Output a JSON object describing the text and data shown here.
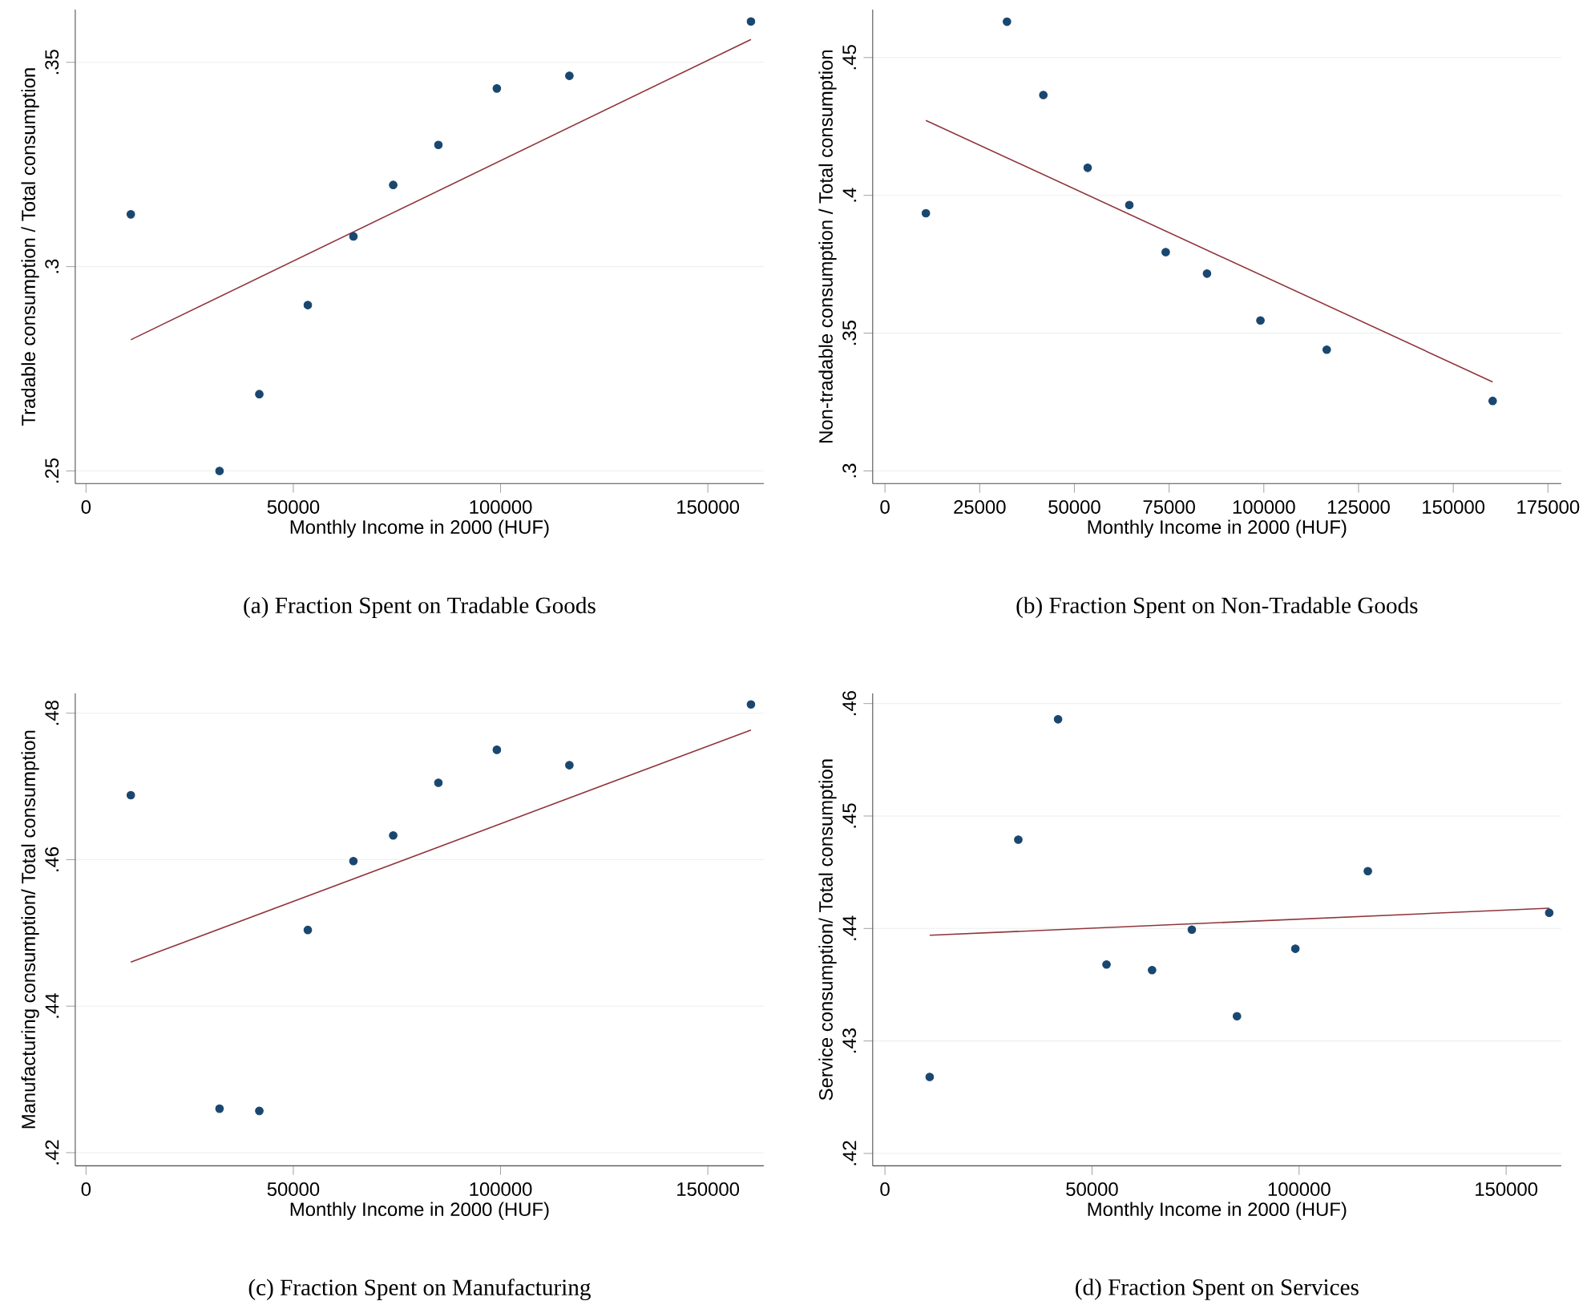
{
  "chart_data": [
    {
      "type": "scatter",
      "title": "(a)  Fraction Spent on Tradable Goods",
      "xlabel": "Monthly Income in 2000 (HUF)",
      "ylabel": "Tradable consumption / Total consumption",
      "grid": "y",
      "xlim": [
        -2600,
        163500
      ],
      "ylim": [
        0.2469,
        0.3629
      ],
      "xticks": [
        0,
        50000,
        100000,
        150000
      ],
      "yticks": [
        {
          "value": 0.25,
          "label": ".25"
        },
        {
          "value": 0.3,
          "label": ".3"
        },
        {
          "value": 0.35,
          "label": ".35"
        }
      ],
      "series": [
        {
          "color": "#1a476f",
          "marker": "circle",
          "x": [
            10800,
            32200,
            41800,
            53500,
            64500,
            74100,
            85000,
            99100,
            116600,
            160400
          ],
          "values": [
            0.3128,
            0.25,
            0.2688,
            0.2906,
            0.3074,
            0.32,
            0.3298,
            0.3436,
            0.3467,
            0.36
          ]
        },
        {
          "type": "line",
          "marker": "none",
          "color": "#90353b",
          "x": [
            10800,
            160400
          ],
          "values": [
            0.2821,
            0.3556
          ]
        }
      ]
    },
    {
      "type": "scatter",
      "title": "(b)  Fraction Spent on Non-Tradable Goods",
      "xlabel": "Monthly Income in 2000 (HUF)",
      "ylabel": "Non-tradable consumption / Total consumption",
      "grid": "y",
      "xlim": [
        -3240,
        178500
      ],
      "ylim": [
        0.2954,
        0.4674
      ],
      "xticks": [
        0,
        25000,
        50000,
        75000,
        100000,
        125000,
        150000,
        175000
      ],
      "yticks": [
        {
          "value": 0.3,
          "label": ".3"
        },
        {
          "value": 0.35,
          "label": ".35"
        },
        {
          "value": 0.4,
          "label": ".4"
        },
        {
          "value": 0.45,
          "label": ".45"
        }
      ],
      "series": [
        {
          "color": "#1a476f",
          "marker": "circle",
          "x": [
            10800,
            32200,
            41800,
            53500,
            64500,
            74100,
            85000,
            99100,
            116600,
            160400
          ],
          "values": [
            0.3935,
            0.463,
            0.4364,
            0.41,
            0.3965,
            0.3794,
            0.3716,
            0.3546,
            0.344,
            0.3254
          ]
        },
        {
          "type": "line",
          "marker": "none",
          "color": "#90353b",
          "x": [
            10800,
            160400
          ],
          "values": [
            0.4272,
            0.3323
          ]
        }
      ]
    },
    {
      "type": "scatter",
      "title": "(c)  Fraction Spent on Manufacturing",
      "xlabel": "Monthly Income in 2000 (HUF)",
      "ylabel": "Manufacturing consumption/ Total consumption",
      "grid": "y",
      "xlim": [
        -2600,
        163500
      ],
      "ylim": [
        0.4182,
        0.4827
      ],
      "xticks": [
        0,
        50000,
        100000,
        150000
      ],
      "yticks": [
        {
          "value": 0.42,
          "label": ".42"
        },
        {
          "value": 0.44,
          "label": ".44"
        },
        {
          "value": 0.46,
          "label": ".46"
        },
        {
          "value": 0.48,
          "label": ".48"
        }
      ],
      "series": [
        {
          "color": "#1a476f",
          "marker": "circle",
          "x": [
            10800,
            32200,
            41800,
            53500,
            64500,
            74100,
            85000,
            99100,
            116600,
            160400
          ],
          "values": [
            0.4688,
            0.426,
            0.4257,
            0.4504,
            0.4598,
            0.4633,
            0.4705,
            0.475,
            0.4729,
            0.4812
          ]
        },
        {
          "type": "line",
          "marker": "none",
          "color": "#90353b",
          "x": [
            10800,
            160400
          ],
          "values": [
            0.446,
            0.4777
          ]
        }
      ]
    },
    {
      "type": "scatter",
      "title": "(d)  Fraction Spent on Services",
      "xlabel": "Monthly Income in 2000 (HUF)",
      "ylabel": "Service consumption/ Total consumption",
      "grid": "y",
      "xlim": [
        -2960,
        163300
      ],
      "ylim": [
        0.4189,
        0.4609
      ],
      "xticks": [
        0,
        50000,
        100000,
        150000
      ],
      "yticks": [
        {
          "value": 0.42,
          "label": ".42"
        },
        {
          "value": 0.43,
          "label": ".43"
        },
        {
          "value": 0.44,
          "label": ".44"
        },
        {
          "value": 0.45,
          "label": ".45"
        },
        {
          "value": 0.46,
          "label": ".46"
        }
      ],
      "series": [
        {
          "color": "#1a476f",
          "marker": "circle",
          "x": [
            10800,
            32200,
            41800,
            53500,
            64500,
            74100,
            85000,
            99100,
            116600,
            160400
          ],
          "values": [
            0.4268,
            0.4479,
            0.4586,
            0.4368,
            0.4363,
            0.4399,
            0.4322,
            0.4382,
            0.4451,
            0.4414
          ]
        },
        {
          "type": "line",
          "marker": "none",
          "color": "#90353b",
          "x": [
            10800,
            160400
          ],
          "values": [
            0.4394,
            0.4418
          ]
        }
      ]
    }
  ]
}
